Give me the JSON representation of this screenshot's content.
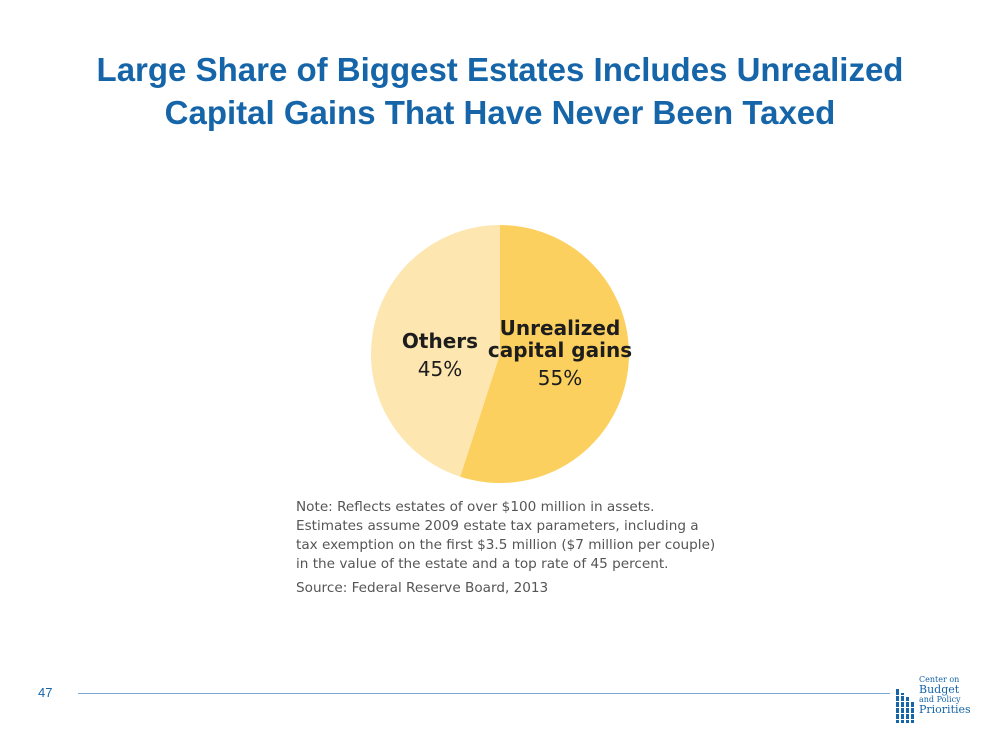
{
  "slide": {
    "title_line1": "Large Share of Biggest Estates Includes Unrealized",
    "title_line2": "Capital Gains That Have Never Been Taxed",
    "page_number": "47"
  },
  "colors": {
    "title": "#1565a8",
    "unrealized": "#fcd05e",
    "others": "#fde6b0",
    "text": "#1d1d1d",
    "note": "#555555",
    "footer_rule": "#7aa7cf"
  },
  "chart_data": {
    "type": "pie",
    "title": "",
    "start_angle_deg": 0,
    "direction": "clockwise",
    "slices": [
      {
        "label_lines": [
          "Unrealized",
          "capital gains"
        ],
        "value": 55,
        "value_label": "55%",
        "color": "#fcd05e"
      },
      {
        "label_lines": [
          "Others"
        ],
        "value": 45,
        "value_label": "45%",
        "color": "#fde6b0"
      }
    ]
  },
  "note": {
    "lines": [
      "Note: Reflects estates of over $100 million in assets.",
      "Estimates assume 2009 estate tax parameters, including a",
      "tax exemption on the first $3.5 million ($7 million per couple)",
      "in the value of the estate and a top rate of 45 percent."
    ],
    "source": "Source: Federal Reserve Board, 2013"
  },
  "logo": {
    "line1": "Center on",
    "line2": "Budget",
    "line3": "and Policy",
    "line4": "Priorities"
  }
}
